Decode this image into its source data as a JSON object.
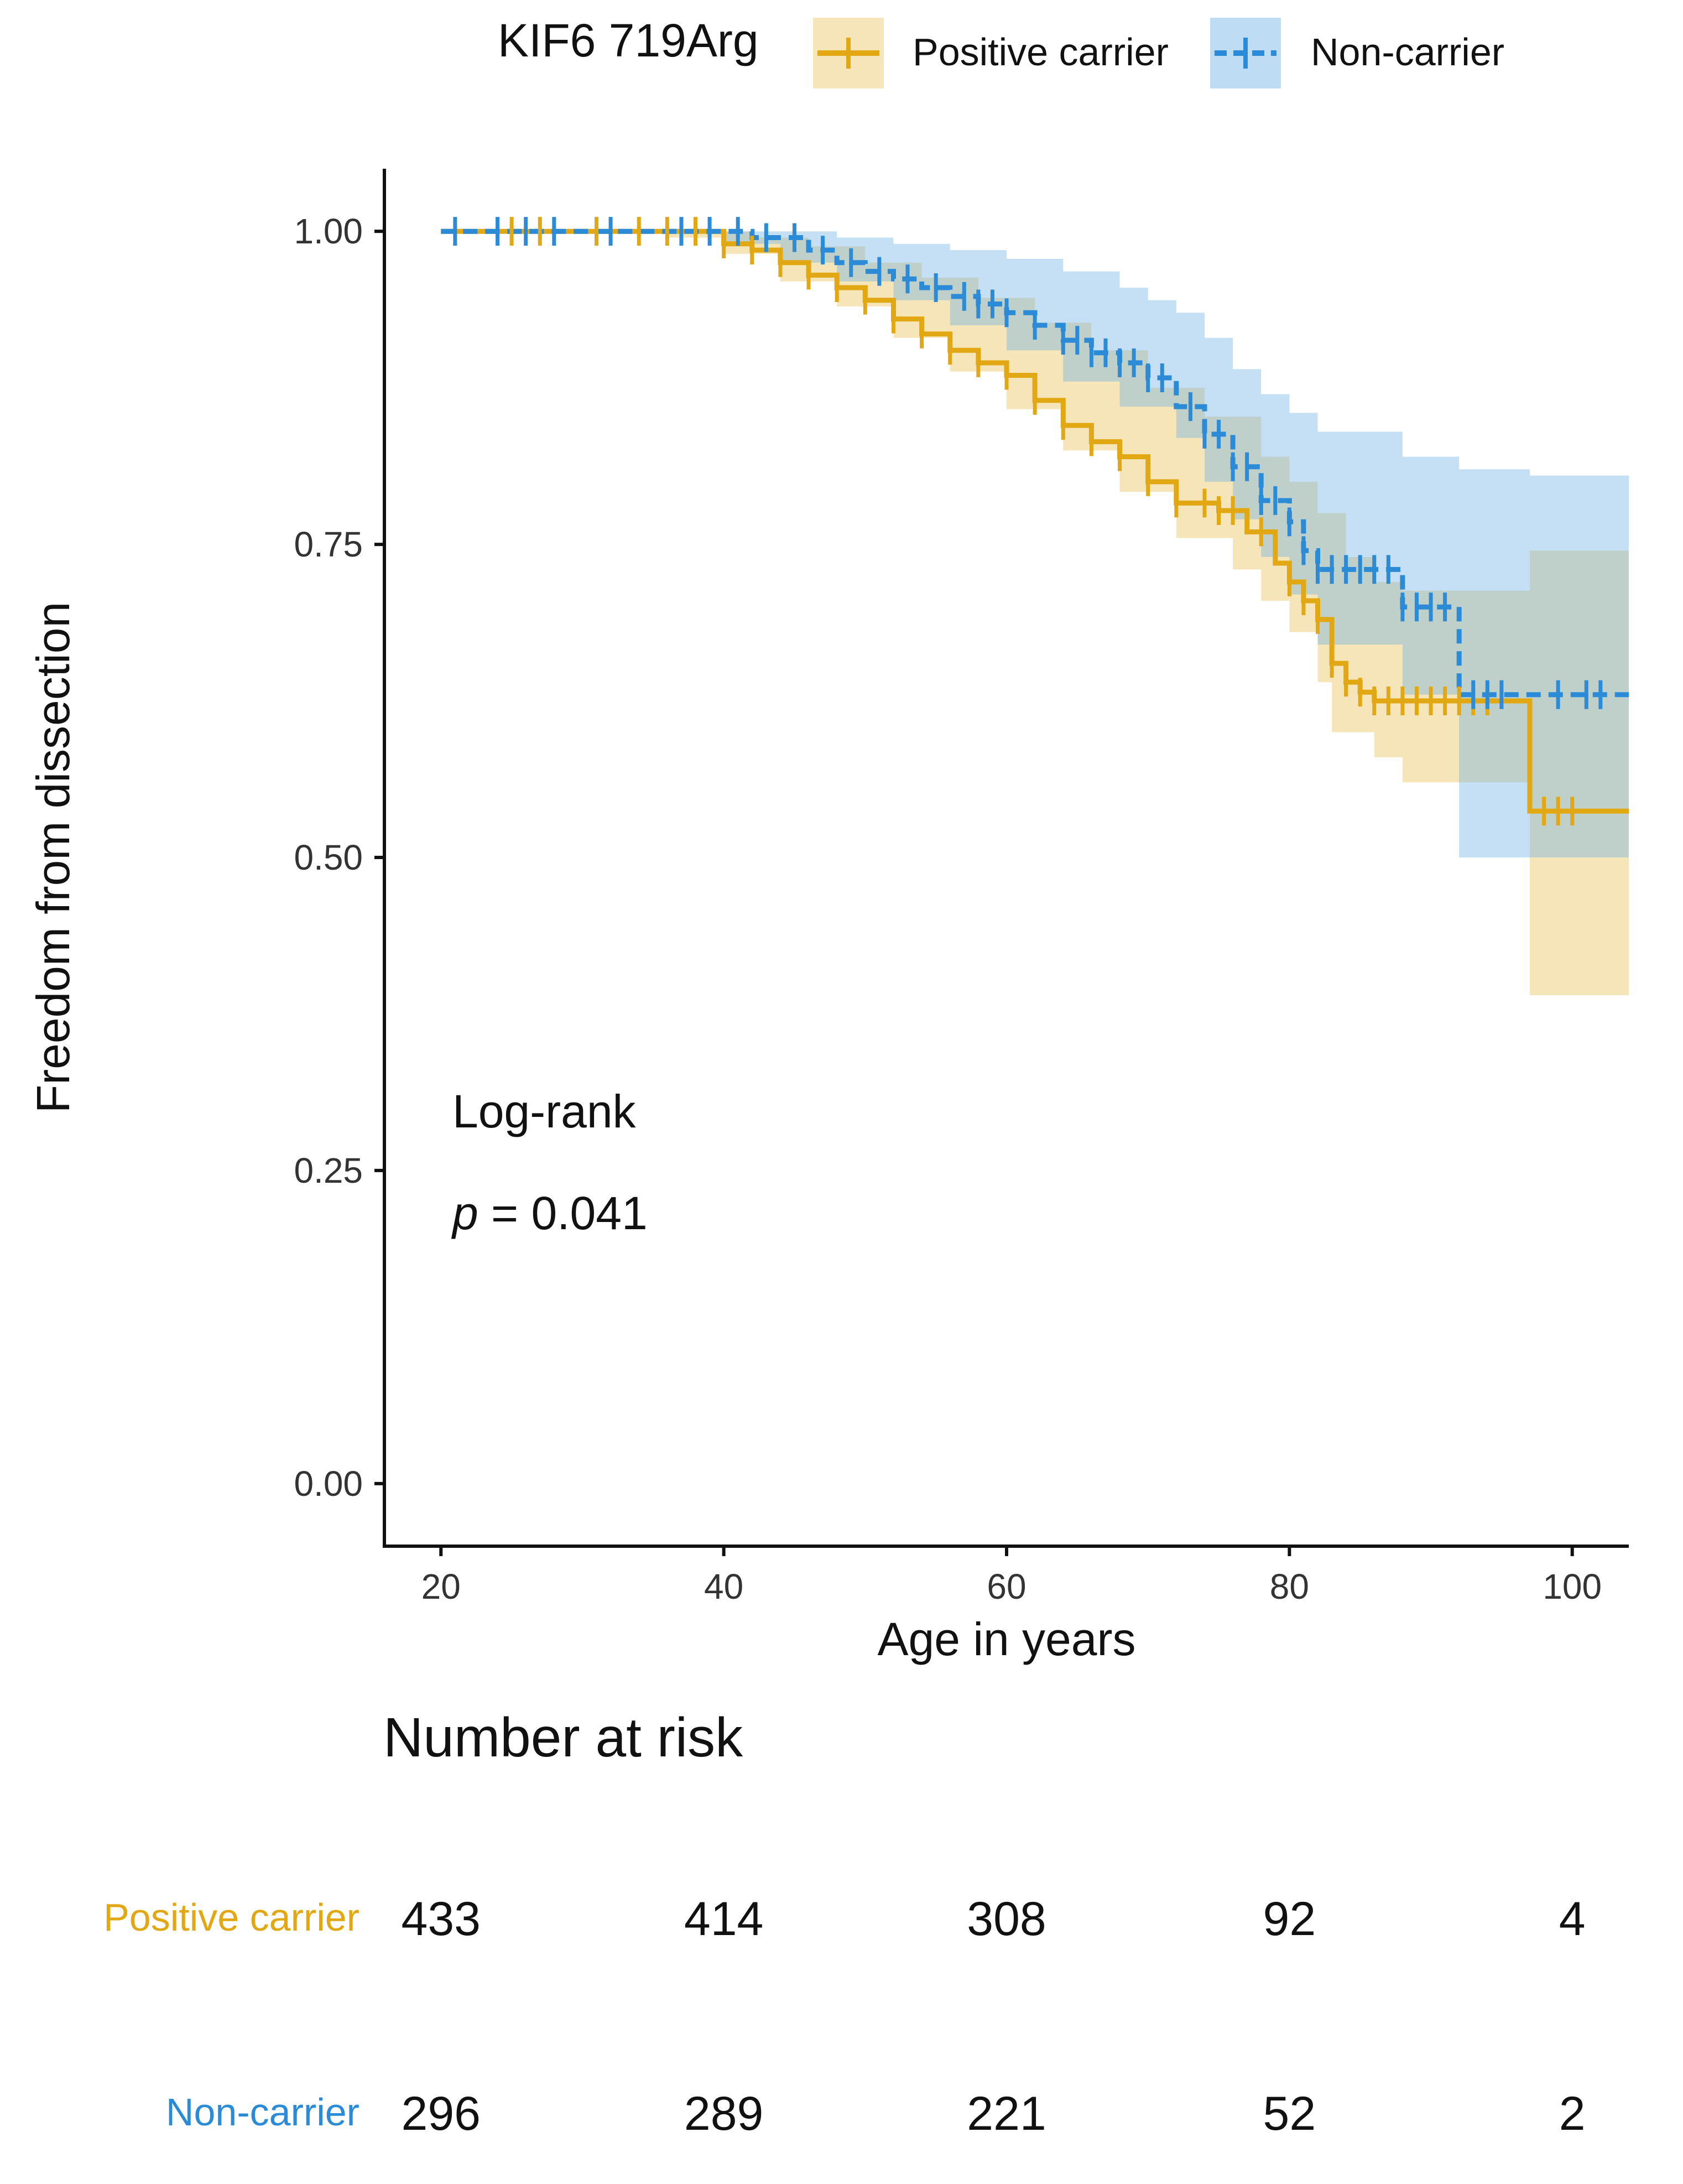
{
  "chart_data": {
    "type": "kaplan-meier",
    "legend": {
      "title": "KIF6 719Arg",
      "position": "top",
      "entries": [
        {
          "name": "Positive carrier",
          "color": "#E2A813"
        },
        {
          "name": "Non-carrier",
          "color": "#2C8BD6"
        }
      ]
    },
    "xlabel": "Age in years",
    "ylabel": "Freedom from dissection",
    "xlim": [
      16,
      104
    ],
    "ylim": [
      -0.05,
      1.05
    ],
    "xticks": [
      20,
      40,
      60,
      80,
      100
    ],
    "xtick_labels": [
      "20",
      "40",
      "60",
      "80",
      "100"
    ],
    "yticks": [
      0,
      0.25,
      0.5,
      0.75,
      1.0
    ],
    "ytick_labels": [
      "0.00",
      "0.25",
      "0.50",
      "0.75",
      "1.00"
    ],
    "annotation": {
      "line1": "Log-rank",
      "p_label": "p",
      "p_rest": " = 0.041"
    },
    "series": [
      {
        "name": "Positive carrier",
        "color": "#E2A813",
        "fill": "#E2A813",
        "dashed": false,
        "curve": [
          [
            20,
            1.0
          ],
          [
            36,
            1.0
          ],
          [
            40,
            0.99
          ],
          [
            42,
            0.985
          ],
          [
            44,
            0.975
          ],
          [
            46,
            0.965
          ],
          [
            48,
            0.955
          ],
          [
            50,
            0.945
          ],
          [
            52,
            0.93
          ],
          [
            54,
            0.918
          ],
          [
            56,
            0.905
          ],
          [
            58,
            0.895
          ],
          [
            60,
            0.885
          ],
          [
            62,
            0.865
          ],
          [
            64,
            0.845
          ],
          [
            66,
            0.832
          ],
          [
            68,
            0.82
          ],
          [
            70,
            0.8
          ],
          [
            72,
            0.783
          ],
          [
            75,
            0.777
          ],
          [
            77,
            0.76
          ],
          [
            79,
            0.735
          ],
          [
            80,
            0.72
          ],
          [
            81,
            0.705
          ],
          [
            82,
            0.69
          ],
          [
            83,
            0.655
          ],
          [
            84,
            0.64
          ],
          [
            85,
            0.632
          ],
          [
            86,
            0.625
          ],
          [
            97,
            0.625
          ],
          [
            97,
            0.537
          ],
          [
            104,
            0.537
          ]
        ],
        "ci_upper": [
          [
            20,
            1.0
          ],
          [
            38,
            1.0
          ],
          [
            42,
            0.995
          ],
          [
            46,
            0.988
          ],
          [
            50,
            0.975
          ],
          [
            54,
            0.963
          ],
          [
            58,
            0.947
          ],
          [
            62,
            0.927
          ],
          [
            66,
            0.905
          ],
          [
            70,
            0.875
          ],
          [
            74,
            0.852
          ],
          [
            78,
            0.82
          ],
          [
            80,
            0.8
          ],
          [
            82,
            0.775
          ],
          [
            84,
            0.74
          ],
          [
            86,
            0.72
          ],
          [
            88,
            0.713
          ],
          [
            97,
            0.71
          ],
          [
            97,
            0.745
          ],
          [
            104,
            0.745
          ]
        ],
        "ci_lower": [
          [
            20,
            1.0
          ],
          [
            36,
            0.995
          ],
          [
            40,
            0.982
          ],
          [
            44,
            0.96
          ],
          [
            48,
            0.94
          ],
          [
            52,
            0.915
          ],
          [
            56,
            0.888
          ],
          [
            60,
            0.858
          ],
          [
            64,
            0.825
          ],
          [
            68,
            0.792
          ],
          [
            72,
            0.755
          ],
          [
            76,
            0.73
          ],
          [
            78,
            0.705
          ],
          [
            80,
            0.68
          ],
          [
            82,
            0.64
          ],
          [
            83,
            0.6
          ],
          [
            86,
            0.58
          ],
          [
            88,
            0.56
          ],
          [
            97,
            0.56
          ],
          [
            97,
            0.39
          ],
          [
            104,
            0.39
          ]
        ],
        "censor_x": [
          25,
          27,
          31,
          34,
          36,
          38,
          40,
          42,
          44,
          46,
          48,
          50,
          52,
          54,
          56,
          58,
          60,
          62,
          64,
          66,
          68,
          70,
          72,
          74,
          75,
          76,
          78,
          80,
          81,
          82,
          83,
          84,
          85,
          86,
          87,
          88,
          89,
          90,
          91,
          92,
          93,
          94,
          98,
          99,
          100
        ]
      },
      {
        "name": "Non-carrier",
        "color": "#2C8BD6",
        "fill": "#6FB1E7",
        "dashed": true,
        "curve": [
          [
            20,
            1.0
          ],
          [
            38,
            1.0
          ],
          [
            42,
            0.995
          ],
          [
            46,
            0.985
          ],
          [
            48,
            0.975
          ],
          [
            50,
            0.968
          ],
          [
            52,
            0.962
          ],
          [
            54,
            0.955
          ],
          [
            56,
            0.948
          ],
          [
            58,
            0.942
          ],
          [
            60,
            0.935
          ],
          [
            62,
            0.925
          ],
          [
            64,
            0.913
          ],
          [
            66,
            0.903
          ],
          [
            68,
            0.895
          ],
          [
            70,
            0.883
          ],
          [
            72,
            0.86
          ],
          [
            74,
            0.838
          ],
          [
            76,
            0.812
          ],
          [
            78,
            0.785
          ],
          [
            80,
            0.768
          ],
          [
            81,
            0.745
          ],
          [
            82,
            0.73
          ],
          [
            88,
            0.73
          ],
          [
            88,
            0.7
          ],
          [
            92,
            0.7
          ],
          [
            92,
            0.63
          ],
          [
            104,
            0.63
          ]
        ],
        "ci_upper": [
          [
            20,
            1.0
          ],
          [
            44,
            1.0
          ],
          [
            48,
            0.995
          ],
          [
            52,
            0.99
          ],
          [
            56,
            0.985
          ],
          [
            60,
            0.978
          ],
          [
            64,
            0.968
          ],
          [
            68,
            0.955
          ],
          [
            70,
            0.945
          ],
          [
            72,
            0.935
          ],
          [
            74,
            0.915
          ],
          [
            76,
            0.89
          ],
          [
            78,
            0.87
          ],
          [
            80,
            0.855
          ],
          [
            82,
            0.84
          ],
          [
            88,
            0.82
          ],
          [
            92,
            0.81
          ],
          [
            97,
            0.805
          ],
          [
            104,
            0.805
          ]
        ],
        "ci_lower": [
          [
            20,
            1.0
          ],
          [
            40,
            0.99
          ],
          [
            44,
            0.975
          ],
          [
            48,
            0.96
          ],
          [
            52,
            0.945
          ],
          [
            56,
            0.925
          ],
          [
            60,
            0.905
          ],
          [
            64,
            0.88
          ],
          [
            68,
            0.86
          ],
          [
            72,
            0.835
          ],
          [
            74,
            0.8
          ],
          [
            76,
            0.77
          ],
          [
            78,
            0.74
          ],
          [
            80,
            0.71
          ],
          [
            82,
            0.67
          ],
          [
            88,
            0.63
          ],
          [
            92,
            0.61
          ],
          [
            92,
            0.5
          ],
          [
            97,
            0.5
          ],
          [
            104,
            0.5
          ]
        ],
        "censor_x": [
          21,
          24,
          26,
          28,
          32,
          37,
          39,
          41,
          43,
          45,
          47,
          49,
          51,
          53,
          55,
          57,
          58,
          59,
          60,
          62,
          64,
          65,
          66,
          67,
          68,
          69,
          70,
          71,
          73,
          74,
          75,
          76,
          77,
          78,
          79,
          80,
          81,
          82,
          83,
          84,
          85,
          86,
          87,
          88,
          89,
          90,
          91,
          93,
          94,
          95,
          99,
          101,
          102
        ]
      }
    ],
    "risk_table": {
      "title": "Number at risk",
      "time_points": [
        20,
        40,
        60,
        80,
        100
      ],
      "rows": [
        {
          "name": "Positive carrier",
          "color": "#E2A813",
          "values": [
            "433",
            "414",
            "308",
            "92",
            "4"
          ]
        },
        {
          "name": "Non-carrier",
          "color": "#2C8BD6",
          "values": [
            "296",
            "289",
            "221",
            "52",
            "2"
          ]
        }
      ]
    }
  }
}
